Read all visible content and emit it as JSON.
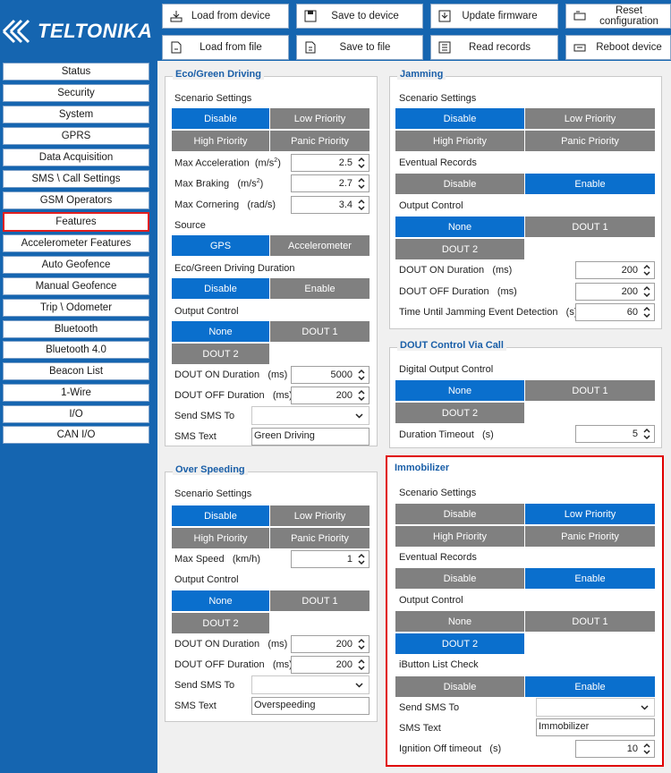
{
  "app": {
    "brand": "TELTONIKA"
  },
  "toolbar": {
    "load_device": "Load from device",
    "save_device": "Save to device",
    "update_fw": "Update firmware",
    "reset_cfg": "Reset configuration",
    "load_file": "Load from file",
    "save_file": "Save to file",
    "read_records": "Read records",
    "reboot": "Reboot device"
  },
  "sidebar": {
    "items": [
      "Status",
      "Security",
      "System",
      "GPRS",
      "Data Acquisition",
      "SMS \\ Call Settings",
      "GSM Operators",
      "Features",
      "Accelerometer Features",
      "Auto Geofence",
      "Manual Geofence",
      "Trip \\ Odometer",
      "Bluetooth",
      "Bluetooth 4.0",
      "Beacon List",
      "1-Wire",
      "I/O",
      "CAN I/O"
    ],
    "active": "Features"
  },
  "eco": {
    "title": "Eco/Green Driving",
    "scenario": "Scenario Settings",
    "b_disable": "Disable",
    "b_low": "Low Priority",
    "b_high": "High Priority",
    "b_panic": "Panic Priority",
    "max_acc": "Max Acceleration",
    "max_acc_unit": "(m/s",
    "max_acc_val": "2.5",
    "max_brk": "Max Braking",
    "max_brk_unit": "(m/s",
    "max_brk_val": "2.7",
    "max_cor": "Max Cornering",
    "max_cor_unit": "(rad/s)",
    "max_cor_val": "3.4",
    "source": "Source",
    "src_gps": "GPS",
    "src_acc": "Accelerometer",
    "duration": "Eco/Green Driving Duration",
    "d_disable": "Disable",
    "d_enable": "Enable",
    "output": "Output Control",
    "o_none": "None",
    "o_dout1": "DOUT 1",
    "o_dout2": "DOUT 2",
    "on_dur": "DOUT ON Duration",
    "on_unit": "(ms)",
    "on_val": "5000",
    "off_dur": "DOUT OFF Duration",
    "off_unit": "(ms)",
    "off_val": "200",
    "send_sms": "Send SMS To",
    "sms_text": "SMS Text",
    "sms_val": "Green Driving"
  },
  "jam": {
    "title": "Jamming",
    "scenario": "Scenario Settings",
    "b_disable": "Disable",
    "b_low": "Low Priority",
    "b_high": "High Priority",
    "b_panic": "Panic Priority",
    "eventual": "Eventual Records",
    "e_disable": "Disable",
    "e_enable": "Enable",
    "output": "Output Control",
    "o_none": "None",
    "o_dout1": "DOUT 1",
    "o_dout2": "DOUT 2",
    "on_dur": "DOUT ON Duration",
    "on_unit": "(ms)",
    "on_val": "200",
    "off_dur": "DOUT OFF Duration",
    "off_unit": "(ms)",
    "off_val": "200",
    "until": "Time Until Jamming Event Detection",
    "until_unit": "(s)",
    "until_val": "60"
  },
  "dcall": {
    "title": "DOUT Control Via Call",
    "doc": "Digital Output Control",
    "o_none": "None",
    "o_dout1": "DOUT 1",
    "o_dout2": "DOUT 2",
    "timeout": "Duration Timeout",
    "timeout_unit": "(s)",
    "timeout_val": "5"
  },
  "over": {
    "title": "Over Speeding",
    "scenario": "Scenario Settings",
    "b_disable": "Disable",
    "b_low": "Low Priority",
    "b_high": "High Priority",
    "b_panic": "Panic Priority",
    "max_speed": "Max Speed",
    "max_speed_unit": "(km/h)",
    "max_speed_val": "1",
    "output": "Output Control",
    "o_none": "None",
    "o_dout1": "DOUT 1",
    "o_dout2": "DOUT 2",
    "on_dur": "DOUT ON Duration",
    "on_unit": "(ms)",
    "on_val": "200",
    "off_dur": "DOUT OFF Duration",
    "off_unit": "(ms)",
    "off_val": "200",
    "send_sms": "Send SMS To",
    "sms_text": "SMS Text",
    "sms_val": "Overspeeding"
  },
  "immo": {
    "title": "Immobilizer",
    "scenario": "Scenario Settings",
    "b_disable": "Disable",
    "b_low": "Low Priority",
    "b_high": "High Priority",
    "b_panic": "Panic Priority",
    "eventual": "Eventual Records",
    "e_disable": "Disable",
    "e_enable": "Enable",
    "output": "Output Control",
    "o_none": "None",
    "o_dout1": "DOUT 1",
    "o_dout2": "DOUT 2",
    "ibutton": "iButton List Check",
    "i_disable": "Disable",
    "i_enable": "Enable",
    "send_sms": "Send SMS To",
    "sms_text": "SMS Text",
    "sms_val": "Immobilizer",
    "ign": "Ignition Off timeout",
    "ign_unit": "(s)",
    "ign_val": "10"
  },
  "colors": {
    "brand_blue": "#1565b0",
    "selected": "#0a6fcd",
    "unselected": "#808080",
    "highlight": "#e00000"
  }
}
